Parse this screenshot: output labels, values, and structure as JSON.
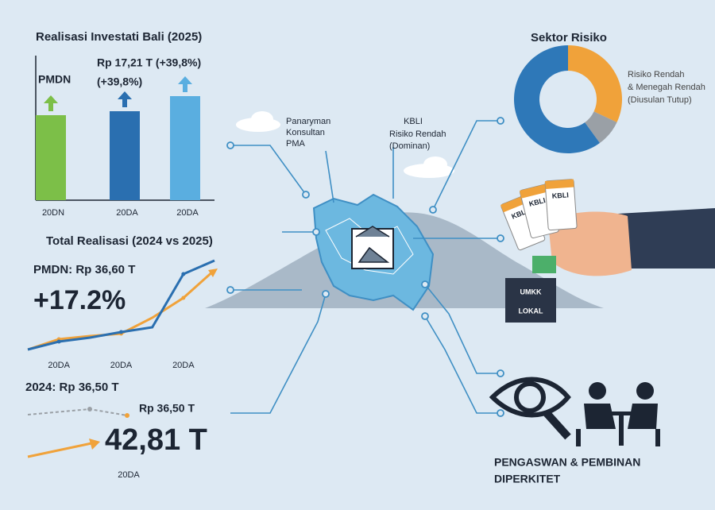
{
  "chart_data": [
    {
      "type": "bar",
      "title": "Realisasi Investati Bali (2025)",
      "categories": [
        "20DN",
        "20DA",
        "20DA"
      ],
      "values": [
        107,
        112,
        131
      ],
      "colors": [
        "#7cbf48",
        "#2a6fb0",
        "#5aaee0"
      ],
      "annotations": [
        "PMDN",
        "Rp 17,21 T (+39,8%)",
        "(+39,8%)"
      ]
    },
    {
      "type": "line",
      "title": "Total Realisasi (2024 vs 2025)",
      "categories": [
        null,
        "20DA",
        null,
        "20DA",
        null,
        "20DA",
        null
      ],
      "series": [
        {
          "color": "#f0a23a",
          "values": [
            10,
            23,
            27,
            30,
            50,
            75,
            110
          ]
        },
        {
          "color": "#2a6fb0",
          "values": [
            10,
            20,
            25,
            32,
            38,
            105,
            122
          ]
        }
      ],
      "annotations": [
        "PMDN: Rp 36,60 T",
        "+17.2%"
      ]
    },
    {
      "type": "pie",
      "title": "Sektor Risiko",
      "values": [
        32,
        8,
        60
      ],
      "colors": [
        "#f0a23a",
        "#9aa0a6",
        "#2e78b8"
      ],
      "annotations": [
        "Risiko Rendah",
        "& Menegah Rendah",
        "(Diusulan Tutup)"
      ]
    }
  ],
  "comparison": {
    "title": "2024: Rp 36,50 T",
    "label": "Rp 36,50 T",
    "total": "42,81 T",
    "category": "20DA"
  },
  "map_labels": {
    "consultant": [
      "Panaryman",
      "Konsultan",
      "PMA"
    ],
    "kbli": [
      "KBLI",
      "Risiko Rendah",
      "(Dominan)"
    ]
  },
  "cards": [
    "KBLI",
    "KBLI",
    "KBLI"
  ],
  "wallet": [
    "UMKK",
    "LOKAL"
  ],
  "footer": [
    "PENGASWAN & PEMBINAN",
    "DIPERKITET"
  ]
}
